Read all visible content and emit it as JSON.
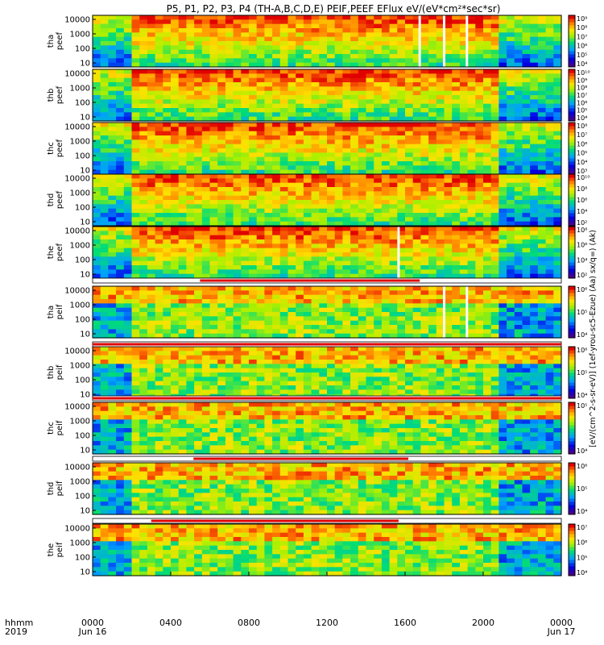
{
  "title": "P5, P1, P2, P3, P4 (TH-A,B,C,D,E) PEIF,PEEF EFlux eV/(eV*cm²*sec*sr)",
  "colorbar_label": "[eV/(cm^2-s-sr-eV)] (1ef-yrou-sc5-Ezue) (Aa) sx/q=) (Ak)",
  "x_axis": {
    "row_label": "hhmm",
    "year_label": "2019",
    "ticks": [
      "0000",
      "0400",
      "0800",
      "1200",
      "1600",
      "2000",
      "0000"
    ],
    "date_labels": [
      "Jun 16",
      "Jun 17"
    ]
  },
  "chart_data": {
    "type": "heatmap",
    "x_unit": "hhmm (UT)",
    "x_range": [
      "2019-06-16 00:00",
      "2019-06-17 00:00"
    ],
    "y_unit": "energy (eV)",
    "y_scale": "log",
    "y_ticks": [
      "10",
      "100",
      "1000",
      "10000"
    ],
    "colormap": "rainbow (blue-low, red-high)",
    "panels": [
      {
        "id": "tha-peef",
        "label": [
          "tha",
          "peef"
        ],
        "species": "electron",
        "cbar_ticks": [
          "10⁴",
          "10⁵",
          "10⁶",
          "10⁷",
          "10⁸",
          "10⁹"
        ],
        "gaps_hhmm": [
          "16:45",
          "18:00",
          "19:10"
        ]
      },
      {
        "id": "thb-peef",
        "label": [
          "thb",
          "peef"
        ],
        "species": "electron",
        "cbar_ticks": [
          "10⁴",
          "10⁵",
          "10⁶",
          "10⁷",
          "10⁸",
          "10⁹",
          "10¹⁰"
        ],
        "gaps_hhmm": []
      },
      {
        "id": "thc-peef",
        "label": [
          "thc",
          "peef"
        ],
        "species": "electron",
        "cbar_ticks": [
          "10³",
          "10⁴",
          "10⁵",
          "10⁶",
          "10⁷",
          "10⁸"
        ],
        "gaps_hhmm": []
      },
      {
        "id": "thd-peef",
        "label": [
          "thd",
          "peef"
        ],
        "species": "electron",
        "cbar_ticks": [
          "10²",
          "10⁴",
          "10⁶",
          "10⁸",
          "10¹⁰"
        ],
        "gaps_hhmm": []
      },
      {
        "id": "the-peef",
        "label": [
          "the",
          "peef"
        ],
        "species": "electron",
        "cbar_ticks": [
          "10²",
          "10⁴",
          "10⁶",
          "10⁸"
        ],
        "gaps_hhmm": [
          "15:40"
        ]
      },
      {
        "id": "tha-peif",
        "label": [
          "tha",
          "peif"
        ],
        "species": "ion",
        "cbar_ticks": [
          "10⁴",
          "10⁵",
          "10⁶"
        ],
        "gaps_hhmm": [
          "18:00",
          "19:10"
        ]
      },
      {
        "id": "thb-peif",
        "label": [
          "thb",
          "peif"
        ],
        "species": "ion",
        "cbar_ticks": [
          "10⁴",
          "10⁵",
          "10⁶"
        ],
        "gaps_hhmm": []
      },
      {
        "id": "thc-peif",
        "label": [
          "thc",
          "peif"
        ],
        "species": "ion",
        "cbar_ticks": [
          "10⁴",
          "10⁵"
        ],
        "gaps_hhmm": []
      },
      {
        "id": "thd-peif",
        "label": [
          "thd",
          "peif"
        ],
        "species": "ion",
        "cbar_ticks": [
          "10⁴",
          "10⁵",
          "10⁶"
        ],
        "gaps_hhmm": []
      },
      {
        "id": "the-peif",
        "label": [
          "the",
          "peif"
        ],
        "species": "ion",
        "cbar_ticks": [
          "10⁴",
          "10⁵",
          "10⁶",
          "10⁷"
        ],
        "gaps_hhmm": []
      }
    ],
    "mode_bars": [
      {
        "after_panel": "the-peef",
        "red_from": "05:30",
        "red_to": "16:45"
      },
      {
        "after_panel": "tha-peif",
        "red_from": "00:00",
        "red_to": "24:00"
      },
      {
        "after_panel": "thb-peif",
        "red_from": "00:00",
        "red_to": "24:00"
      },
      {
        "after_panel": "thc-peif",
        "red_from": "05:10",
        "red_to": "16:10"
      },
      {
        "after_panel": "thd-peif",
        "red_from": "03:00",
        "red_to": "15:40"
      }
    ]
  }
}
